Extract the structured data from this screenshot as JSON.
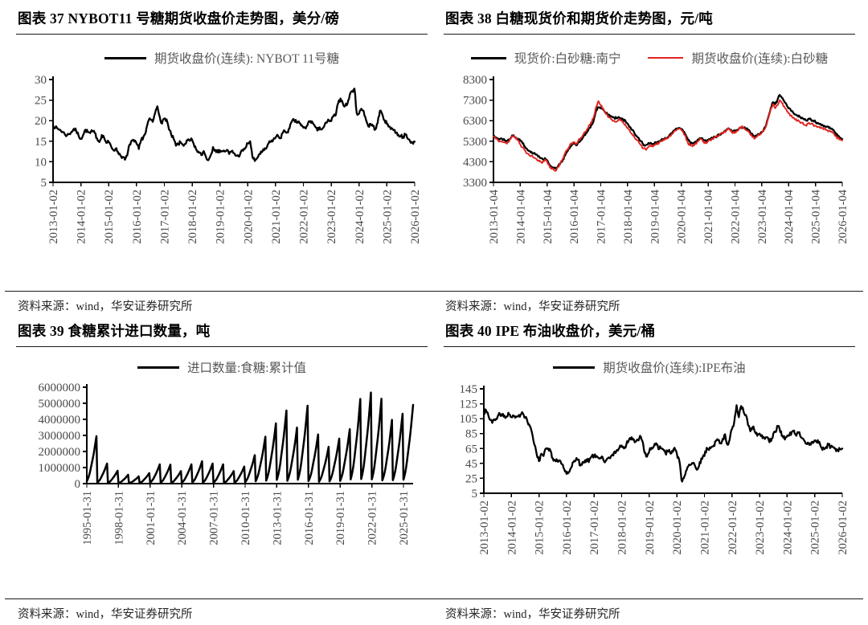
{
  "colors": {
    "black_line": "#000000",
    "red_line": "#e02420",
    "axis": "#000000",
    "tick_label": "#4a4a4a",
    "legend_text": "#595959"
  },
  "panels": [
    {
      "title": "图表 37 NYBOT11 号糖期货收盘价走势图，美分/磅",
      "legend": [
        {
          "label": "期货收盘价(连续): NYBOT 11号糖",
          "color": "#000000"
        }
      ],
      "source": "资料来源：wind，华安证券研究所"
    },
    {
      "title": "图表 38 白糖现货价和期货价走势图，元/吨",
      "legend": [
        {
          "label": "现货价:白砂糖:南宁",
          "color": "#000000"
        },
        {
          "label": "期货收盘价(连续):白砂糖",
          "color": "#e02420"
        }
      ],
      "source": "资料来源：wind，华安证券研究所"
    },
    {
      "title": "图表 39 食糖累计进口数量，吨",
      "legend": [
        {
          "label": "进口数量:食糖:累计值",
          "color": "#000000"
        }
      ],
      "source": "资料来源：wind，华安证券研究所"
    },
    {
      "title": "图表 40 IPE 布油收盘价，美元/桶",
      "legend": [
        {
          "label": "期货收盘价(连续):IPE布油",
          "color": "#000000"
        }
      ],
      "source": "资料来源：wind，华安证券研究所"
    }
  ],
  "chart_data": [
    {
      "type": "line",
      "title": "NYBOT11 号糖期货收盘价走势图",
      "ylabel": "美分/磅",
      "ylim": [
        5,
        30
      ],
      "y_ticks": [
        5,
        10,
        15,
        20,
        25,
        30
      ],
      "grid": false,
      "legend_position": "top",
      "x_labels": [
        "2013-01-02",
        "2014-01-02",
        "2015-01-02",
        "2016-01-02",
        "2017-01-02",
        "2018-01-02",
        "2019-01-02",
        "2020-01-02",
        "2021-01-02",
        "2022-01-02",
        "2023-01-02",
        "2024-01-02",
        "2025-01-02",
        "2026-01-02"
      ],
      "series": [
        {
          "name": "期货收盘价(连续): NYBOT 11号糖",
          "color": "#000000",
          "values": [
            18.9,
            18.3,
            18.0,
            17.8,
            17.3,
            16.8,
            16.4,
            16.8,
            17.3,
            18.0,
            17.5,
            16.4,
            15.6,
            16.5,
            17.8,
            17.2,
            17.0,
            17.4,
            17.0,
            15.7,
            14.8,
            16.5,
            15.9,
            14.6,
            14.8,
            13.8,
            12.9,
            13.2,
            12.4,
            11.6,
            11.2,
            10.5,
            11.5,
            14.2,
            15.2,
            14.9,
            14.5,
            13.1,
            15.3,
            16.1,
            17.2,
            19.8,
            20.3,
            19.7,
            21.8,
            23.5,
            21.0,
            19.3,
            20.5,
            20.3,
            17.9,
            16.5,
            15.6,
            13.9,
            14.3,
            14.7,
            14.1,
            14.4,
            15.2,
            15.1,
            15.3,
            13.6,
            12.8,
            12.2,
            11.6,
            12.6,
            11.1,
            10.4,
            11.6,
            13.6,
            12.9,
            12.3,
            12.8,
            12.6,
            12.5,
            12.9,
            11.9,
            12.6,
            12.1,
            11.5,
            11.3,
            12.4,
            12.7,
            13.4,
            14.5,
            15.0,
            11.2,
            10.2,
            10.9,
            11.9,
            12.3,
            12.8,
            13.3,
            14.5,
            14.9,
            15.4,
            15.9,
            16.4,
            15.7,
            17.0,
            17.4,
            17.2,
            18.1,
            19.8,
            20.1,
            19.6,
            19.8,
            18.8,
            18.3,
            18.1,
            19.4,
            19.9,
            19.5,
            18.6,
            17.6,
            18.4,
            17.9,
            18.7,
            19.5,
            20.1,
            19.9,
            21.2,
            21.4,
            24.3,
            25.4,
            24.2,
            23.6,
            24.1,
            26.3,
            27.2,
            27.8,
            21.8,
            21.7,
            22.9,
            22.3,
            20.2,
            18.6,
            19.2,
            18.7,
            17.9,
            19.4,
            22.4,
            21.6,
            20.1,
            19.2,
            18.6,
            18.2,
            17.7,
            17.1,
            16.5,
            16.3,
            16.1,
            16.6,
            15.6,
            15.0,
            14.7,
            14.9
          ]
        }
      ]
    },
    {
      "type": "line",
      "title": "白糖现货价和期货价走势图",
      "ylabel": "元/吨",
      "ylim": [
        3300,
        8300
      ],
      "y_ticks": [
        3300,
        4300,
        5300,
        6300,
        7300,
        8300
      ],
      "grid": false,
      "legend_position": "top",
      "x_labels": [
        "2013-01-04",
        "2014-01-04",
        "2015-01-04",
        "2016-01-04",
        "2017-01-04",
        "2018-01-04",
        "2019-01-04",
        "2020-01-04",
        "2021-01-04",
        "2022-01-04",
        "2023-01-04",
        "2024-01-04",
        "2025-01-04",
        "2026-01-04"
      ],
      "series": [
        {
          "name": "现货价:白砂糖:南宁",
          "color": "#000000",
          "values": [
            5560,
            5480,
            5430,
            5420,
            5380,
            5350,
            5330,
            5390,
            5500,
            5590,
            5480,
            5420,
            5310,
            5200,
            5050,
            4920,
            4830,
            4780,
            4720,
            4650,
            4550,
            4480,
            4420,
            4480,
            4370,
            4180,
            4050,
            3980,
            3950,
            4100,
            4250,
            4400,
            4600,
            4800,
            4950,
            5100,
            5180,
            5100,
            5250,
            5350,
            5480,
            5600,
            5780,
            5950,
            6100,
            6400,
            6800,
            6950,
            6950,
            6850,
            6700,
            6600,
            6550,
            6500,
            6450,
            6420,
            6480,
            6420,
            6350,
            6300,
            6150,
            6000,
            5850,
            5700,
            5550,
            5450,
            5300,
            5150,
            5100,
            5150,
            5200,
            5150,
            5200,
            5250,
            5300,
            5350,
            5400,
            5450,
            5500,
            5600,
            5700,
            5850,
            5900,
            5950,
            5900,
            5750,
            5600,
            5350,
            5250,
            5200,
            5250,
            5300,
            5400,
            5450,
            5350,
            5300,
            5350,
            5400,
            5450,
            5500,
            5550,
            5600,
            5700,
            5750,
            5800,
            5900,
            5850,
            5750,
            5800,
            5850,
            5950,
            6000,
            5950,
            5900,
            5850,
            5700,
            5600,
            5550,
            5600,
            5650,
            5750,
            5900,
            6100,
            6500,
            6900,
            7200,
            7100,
            7300,
            7550,
            7400,
            7250,
            7100,
            6900,
            6800,
            6700,
            6600,
            6550,
            6500,
            6450,
            6350,
            6300,
            6400,
            6350,
            6300,
            6250,
            6200,
            6150,
            6100,
            6050,
            6000,
            5950,
            5900,
            5850,
            5700,
            5550,
            5450,
            5400
          ]
        },
        {
          "name": "期货收盘价(连续):白砂糖",
          "color": "#e02420",
          "values": [
            5540,
            5420,
            5350,
            5300,
            5280,
            5230,
            5180,
            5300,
            5480,
            5560,
            5420,
            5330,
            5150,
            5000,
            4850,
            4700,
            4620,
            4600,
            4500,
            4450,
            4380,
            4300,
            4280,
            4400,
            4300,
            4100,
            3950,
            3900,
            3870,
            4050,
            4250,
            4450,
            4700,
            4900,
            5050,
            5200,
            5250,
            5150,
            5350,
            5450,
            5600,
            5750,
            5900,
            6100,
            6250,
            6550,
            7000,
            7250,
            7050,
            6900,
            6700,
            6550,
            6450,
            6350,
            6300,
            6250,
            6350,
            6300,
            6200,
            6100,
            5950,
            5800,
            5650,
            5500,
            5350,
            5250,
            5100,
            4950,
            4900,
            5000,
            5100,
            5050,
            5100,
            5150,
            5200,
            5300,
            5350,
            5400,
            5450,
            5550,
            5650,
            5800,
            5850,
            5900,
            5850,
            5700,
            5500,
            5200,
            5100,
            5050,
            5150,
            5250,
            5350,
            5400,
            5250,
            5200,
            5300,
            5350,
            5400,
            5500,
            5550,
            5600,
            5700,
            5750,
            5800,
            5950,
            5800,
            5700,
            5750,
            5800,
            5950,
            6000,
            5950,
            5850,
            5800,
            5600,
            5500,
            5450,
            5550,
            5600,
            5700,
            5850,
            6050,
            6450,
            6850,
            7100,
            6900,
            7050,
            7300,
            7150,
            7000,
            6850,
            6650,
            6550,
            6450,
            6350,
            6300,
            6250,
            6200,
            6100,
            6050,
            6200,
            6150,
            6100,
            6050,
            6000,
            5950,
            5950,
            5900,
            5850,
            5800,
            5750,
            5700,
            5550,
            5450,
            5400,
            5350
          ]
        }
      ]
    },
    {
      "type": "line",
      "title": "食糖累计进口数量",
      "ylabel": "吨",
      "ylim": [
        0,
        6000000
      ],
      "y_ticks": [
        0,
        1000000,
        2000000,
        3000000,
        4000000,
        5000000,
        6000000
      ],
      "grid": false,
      "legend_position": "top",
      "x_labels": [
        "1995-01-31",
        "1998-01-31",
        "2001-01-31",
        "2004-01-31",
        "2007-01-31",
        "2010-01-31",
        "2013-01-31",
        "2016-01-31",
        "2019-01-31",
        "2022-01-31",
        "2025-01-31"
      ],
      "series": [
        {
          "name": "进口数量:食糖:累计值",
          "color": "#000000",
          "yearly_peaks_years": [
            1995,
            1996,
            1997,
            1998,
            1999,
            2000,
            2001,
            2002,
            2003,
            2004,
            2005,
            2006,
            2007,
            2008,
            2009,
            2010,
            2011,
            2012,
            2013,
            2014,
            2015,
            2016,
            2017,
            2018,
            2019,
            2020,
            2021,
            2022,
            2023,
            2024,
            2025
          ],
          "yearly_peaks": [
            2950000,
            1250000,
            800000,
            550000,
            450000,
            650000,
            1200000,
            1180000,
            780000,
            1200000,
            1390000,
            1250000,
            1200000,
            780000,
            1060000,
            1770000,
            2920000,
            3750000,
            4550000,
            3490000,
            4850000,
            3060000,
            2290000,
            2800000,
            3390000,
            5270000,
            5670000,
            5280000,
            3970000,
            4350000,
            4900000
          ],
          "month_profile": [
            0.05,
            0.09,
            0.14,
            0.2,
            0.28,
            0.37,
            0.46,
            0.55,
            0.65,
            0.76,
            0.88,
            1.0
          ]
        }
      ]
    },
    {
      "type": "line",
      "title": "IPE 布油收盘价",
      "ylabel": "美元/桶",
      "ylim": [
        5,
        145
      ],
      "y_ticks": [
        5,
        25,
        45,
        65,
        85,
        105,
        125,
        145
      ],
      "grid": false,
      "legend_position": "top",
      "x_labels": [
        "2013-01-02",
        "2014-01-02",
        "2015-01-02",
        "2016-01-02",
        "2017-01-02",
        "2018-01-02",
        "2019-01-02",
        "2020-01-02",
        "2021-01-02",
        "2022-01-02",
        "2023-01-02",
        "2024-01-02",
        "2025-01-02",
        "2026-01-02"
      ],
      "series": [
        {
          "name": "期货收盘价(连续):IPE布油",
          "color": "#000000",
          "values": [
            113,
            116,
            109,
            103,
            102,
            103,
            108,
            111,
            109,
            109,
            108,
            111,
            107,
            109,
            108,
            108,
            110,
            112,
            106,
            101,
            95,
            86,
            70,
            57,
            48,
            58,
            55,
            65,
            65,
            62,
            52,
            49,
            48,
            49,
            44,
            37,
            31,
            33,
            39,
            47,
            49,
            50,
            42,
            47,
            49,
            48,
            50,
            55,
            55,
            55,
            52,
            52,
            50,
            48,
            52,
            52,
            57,
            61,
            63,
            66,
            69,
            65,
            70,
            75,
            77,
            78,
            74,
            77,
            82,
            75,
            59,
            54,
            61,
            66,
            68,
            72,
            64,
            66,
            64,
            59,
            61,
            60,
            62,
            66,
            58,
            50,
            23,
            25,
            35,
            41,
            43,
            45,
            41,
            37,
            47,
            51,
            55,
            66,
            63,
            67,
            69,
            75,
            76,
            72,
            78,
            84,
            70,
            77,
            91,
            101,
            123,
            107,
            122,
            115,
            110,
            96,
            88,
            94,
            87,
            82,
            85,
            83,
            79,
            80,
            76,
            75,
            85,
            87,
            95,
            87,
            82,
            77,
            82,
            83,
            87,
            89,
            82,
            86,
            80,
            78,
            72,
            73,
            72,
            74,
            76,
            73,
            74,
            66,
            64,
            67,
            70,
            67,
            67,
            65,
            63,
            64,
            65
          ]
        }
      ]
    }
  ]
}
